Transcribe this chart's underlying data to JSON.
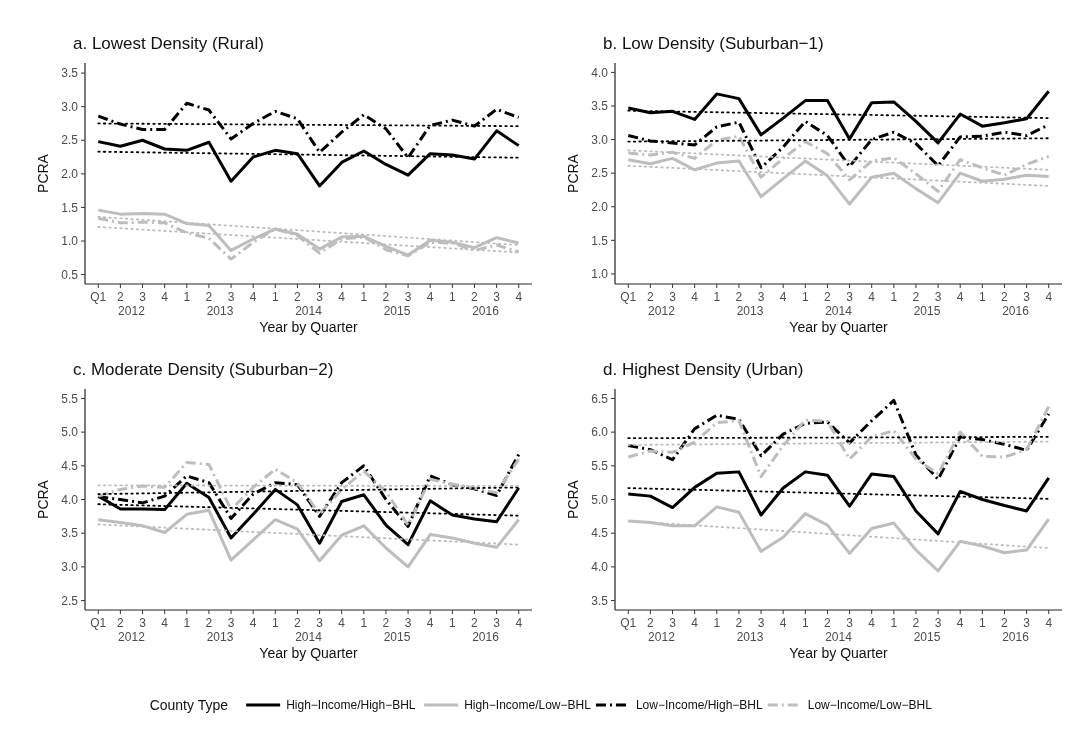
{
  "chart_data": [
    {
      "type": "line",
      "title": "a. Lowest Density (Rural)",
      "xlabel": "Year by Quarter",
      "ylabel": "PCRA",
      "categories": [
        "Q1",
        "2",
        "3",
        "4",
        "1",
        "2",
        "3",
        "4",
        "1",
        "2",
        "3",
        "4",
        "1",
        "2",
        "3",
        "4",
        "1",
        "2",
        "3",
        "4"
      ],
      "annotations": [
        "2012",
        "2013",
        "2014",
        "2015",
        "2016"
      ],
      "ylim": [
        0.36,
        3.65
      ],
      "yticks": [
        {
          "value": 0.5,
          "label": "0.5"
        },
        {
          "value": 1,
          "label": "1.0"
        },
        {
          "value": 1.5,
          "label": "1.5"
        },
        {
          "value": 2,
          "label": "2.0"
        },
        {
          "value": 2.5,
          "label": "2.5"
        },
        {
          "value": 3,
          "label": "3.0"
        },
        {
          "value": 3.5,
          "label": "3.5"
        }
      ],
      "grid": false,
      "series": [
        {
          "color": "#000000",
          "line_style": "solid",
          "values": [
            2.48,
            2.41,
            2.5,
            2.37,
            2.35,
            2.47,
            1.89,
            2.25,
            2.35,
            2.3,
            1.82,
            2.17,
            2.34,
            2.14,
            1.98,
            2.3,
            2.28,
            2.22,
            2.64,
            2.42
          ]
        },
        {
          "color": "#bdbdbd",
          "line_style": "solid",
          "values": [
            1.46,
            1.4,
            1.41,
            1.4,
            1.26,
            1.23,
            0.86,
            1.03,
            1.18,
            1.1,
            0.88,
            1.06,
            1.07,
            0.92,
            0.79,
            1.01,
            0.98,
            0.9,
            1.05,
            0.97
          ]
        },
        {
          "color": "#000000",
          "line_style": "dashdot",
          "values": [
            2.86,
            2.74,
            2.66,
            2.66,
            3.05,
            2.95,
            2.52,
            2.75,
            2.93,
            2.82,
            2.32,
            2.62,
            2.88,
            2.67,
            2.24,
            2.72,
            2.8,
            2.71,
            2.96,
            2.84
          ]
        },
        {
          "color": "#bdbdbd",
          "line_style": "dashdot",
          "values": [
            1.34,
            1.27,
            1.28,
            1.27,
            1.12,
            1.04,
            0.73,
            0.98,
            1.18,
            1.08,
            0.82,
            1.03,
            1.06,
            0.87,
            0.78,
            0.98,
            0.97,
            0.86,
            0.94,
            0.84
          ]
        },
        {
          "color": "#000000",
          "line_style": "dotted",
          "values": [
            2.33,
            null,
            null,
            null,
            null,
            null,
            null,
            null,
            null,
            null,
            null,
            null,
            null,
            null,
            null,
            null,
            null,
            null,
            null,
            2.24
          ]
        },
        {
          "color": "#bdbdbd",
          "line_style": "dotted",
          "values": [
            1.36,
            null,
            null,
            null,
            null,
            null,
            null,
            null,
            null,
            null,
            null,
            null,
            null,
            null,
            null,
            null,
            null,
            null,
            null,
            0.94
          ]
        },
        {
          "color": "#000000",
          "line_style": "dotted",
          "values": [
            2.75,
            null,
            null,
            null,
            null,
            null,
            null,
            null,
            null,
            null,
            null,
            null,
            null,
            null,
            null,
            null,
            null,
            null,
            null,
            2.71
          ]
        },
        {
          "color": "#bdbdbd",
          "line_style": "dotted",
          "values": [
            1.21,
            null,
            null,
            null,
            null,
            null,
            null,
            null,
            null,
            null,
            null,
            null,
            null,
            null,
            null,
            null,
            null,
            null,
            null,
            0.83
          ]
        }
      ]
    },
    {
      "type": "line",
      "title": "b. Low Density (Suburban−1)",
      "xlabel": "Year by Quarter",
      "ylabel": "PCRA",
      "categories": [
        "Q1",
        "2",
        "3",
        "4",
        "1",
        "2",
        "3",
        "4",
        "1",
        "2",
        "3",
        "4",
        "1",
        "2",
        "3",
        "4",
        "1",
        "2",
        "3",
        "4"
      ],
      "annotations": [
        "2012",
        "2013",
        "2014",
        "2015",
        "2016"
      ],
      "ylim": [
        0.85,
        4.14
      ],
      "yticks": [
        {
          "value": 1,
          "label": "1.0"
        },
        {
          "value": 1.5,
          "label": "1.5"
        },
        {
          "value": 2,
          "label": "2.0"
        },
        {
          "value": 2.5,
          "label": "2.5"
        },
        {
          "value": 3,
          "label": "3.0"
        },
        {
          "value": 3.5,
          "label": "3.5"
        },
        {
          "value": 4,
          "label": "4.0"
        }
      ],
      "grid": false,
      "series": [
        {
          "color": "#000000",
          "line_style": "solid",
          "values": [
            3.47,
            3.4,
            3.42,
            3.3,
            3.68,
            3.61,
            3.07,
            3.32,
            3.58,
            3.58,
            3.01,
            3.55,
            3.56,
            3.27,
            2.95,
            3.38,
            3.2,
            3.25,
            3.31,
            3.72
          ]
        },
        {
          "color": "#bdbdbd",
          "line_style": "solid",
          "values": [
            2.7,
            2.64,
            2.72,
            2.55,
            2.65,
            2.68,
            2.15,
            2.42,
            2.68,
            2.46,
            2.04,
            2.44,
            2.5,
            2.27,
            2.06,
            2.5,
            2.38,
            2.41,
            2.47,
            2.45
          ]
        },
        {
          "color": "#000000",
          "line_style": "dashdot",
          "values": [
            3.06,
            2.98,
            2.95,
            2.92,
            3.19,
            3.26,
            2.58,
            2.89,
            3.27,
            3.06,
            2.6,
            3.0,
            3.11,
            2.94,
            2.61,
            3.04,
            3.05,
            3.11,
            3.06,
            3.22
          ]
        },
        {
          "color": "#bdbdbd",
          "line_style": "dashdot",
          "values": [
            2.8,
            2.77,
            2.81,
            2.72,
            2.99,
            3.05,
            2.44,
            2.72,
            2.97,
            2.79,
            2.4,
            2.68,
            2.73,
            2.49,
            2.23,
            2.7,
            2.58,
            2.47,
            2.63,
            2.75
          ]
        },
        {
          "color": "#000000",
          "line_style": "dotted",
          "values": [
            3.43,
            null,
            null,
            null,
            null,
            null,
            null,
            null,
            null,
            null,
            null,
            null,
            null,
            null,
            null,
            null,
            null,
            null,
            null,
            3.32
          ]
        },
        {
          "color": "#bdbdbd",
          "line_style": "dotted",
          "values": [
            2.61,
            null,
            null,
            null,
            null,
            null,
            null,
            null,
            null,
            null,
            null,
            null,
            null,
            null,
            null,
            null,
            null,
            null,
            null,
            2.31
          ]
        },
        {
          "color": "#000000",
          "line_style": "dotted",
          "values": [
            2.97,
            null,
            null,
            null,
            null,
            null,
            null,
            null,
            null,
            null,
            null,
            null,
            null,
            null,
            null,
            null,
            null,
            null,
            null,
            3.02
          ]
        },
        {
          "color": "#bdbdbd",
          "line_style": "dotted",
          "values": [
            2.84,
            null,
            null,
            null,
            null,
            null,
            null,
            null,
            null,
            null,
            null,
            null,
            null,
            null,
            null,
            null,
            null,
            null,
            null,
            2.55
          ]
        }
      ]
    },
    {
      "type": "line",
      "title": "c. Moderate Density (Suburban−2)",
      "xlabel": "Year by Quarter",
      "ylabel": "PCRA",
      "categories": [
        "Q1",
        "2",
        "3",
        "4",
        "1",
        "2",
        "3",
        "4",
        "1",
        "2",
        "3",
        "4",
        "1",
        "2",
        "3",
        "4",
        "1",
        "2",
        "3",
        "4"
      ],
      "annotations": [
        "2012",
        "2013",
        "2014",
        "2015",
        "2016"
      ],
      "ylim": [
        2.36,
        5.64
      ],
      "yticks": [
        {
          "value": 2.5,
          "label": "2.5"
        },
        {
          "value": 3,
          "label": "3.0"
        },
        {
          "value": 3.5,
          "label": "3.5"
        },
        {
          "value": 4,
          "label": "4.0"
        },
        {
          "value": 4.5,
          "label": "4.5"
        },
        {
          "value": 5,
          "label": "5.0"
        },
        {
          "value": 5.5,
          "label": "5.5"
        }
      ],
      "grid": false,
      "series": [
        {
          "color": "#000000",
          "line_style": "solid",
          "values": [
            4.05,
            3.86,
            3.86,
            3.85,
            4.24,
            4.03,
            3.43,
            3.78,
            4.15,
            3.92,
            3.35,
            3.97,
            4.07,
            3.62,
            3.33,
            3.98,
            3.77,
            3.71,
            3.67,
            4.17
          ]
        },
        {
          "color": "#bdbdbd",
          "line_style": "solid",
          "values": [
            3.7,
            3.66,
            3.61,
            3.51,
            3.78,
            3.84,
            3.1,
            3.4,
            3.7,
            3.56,
            3.09,
            3.47,
            3.61,
            3.28,
            3.0,
            3.48,
            3.43,
            3.35,
            3.29,
            3.7
          ]
        },
        {
          "color": "#000000",
          "line_style": "dashdot",
          "values": [
            4.04,
            4.0,
            3.95,
            4.05,
            4.35,
            4.25,
            3.72,
            4.08,
            4.25,
            4.22,
            3.75,
            4.25,
            4.5,
            4.0,
            3.6,
            4.35,
            4.22,
            4.16,
            4.06,
            4.67
          ]
        },
        {
          "color": "#bdbdbd",
          "line_style": "dashdot",
          "values": [
            4.05,
            4.15,
            4.2,
            4.18,
            4.55,
            4.52,
            3.85,
            4.18,
            4.45,
            4.25,
            3.78,
            4.15,
            4.42,
            4.12,
            3.62,
            4.3,
            4.23,
            4.17,
            4.1,
            4.6
          ]
        },
        {
          "color": "#000000",
          "line_style": "dotted",
          "values": [
            3.93,
            null,
            null,
            null,
            null,
            null,
            null,
            null,
            null,
            null,
            null,
            null,
            null,
            null,
            null,
            null,
            null,
            null,
            null,
            3.76
          ]
        },
        {
          "color": "#bdbdbd",
          "line_style": "dotted",
          "values": [
            3.63,
            null,
            null,
            null,
            null,
            null,
            null,
            null,
            null,
            null,
            null,
            null,
            null,
            null,
            null,
            null,
            null,
            null,
            null,
            3.33
          ]
        },
        {
          "color": "#000000",
          "line_style": "dotted",
          "values": [
            4.08,
            null,
            null,
            null,
            null,
            null,
            null,
            null,
            null,
            null,
            null,
            null,
            null,
            null,
            null,
            null,
            null,
            null,
            null,
            4.18
          ]
        },
        {
          "color": "#bdbdbd",
          "line_style": "dotted",
          "values": [
            4.21,
            null,
            null,
            null,
            null,
            null,
            null,
            null,
            null,
            null,
            null,
            null,
            null,
            null,
            null,
            null,
            null,
            null,
            null,
            4.2
          ]
        }
      ]
    },
    {
      "type": "line",
      "title": "d. Highest Density (Urban)",
      "xlabel": "Year by Quarter",
      "ylabel": "PCRA",
      "categories": [
        "Q1",
        "2",
        "3",
        "4",
        "1",
        "2",
        "3",
        "4",
        "1",
        "2",
        "3",
        "4",
        "1",
        "2",
        "3",
        "4",
        "1",
        "2",
        "3",
        "4"
      ],
      "annotations": [
        "2012",
        "2013",
        "2014",
        "2015",
        "2016"
      ],
      "ylim": [
        3.36,
        6.64
      ],
      "yticks": [
        {
          "value": 3.5,
          "label": "3.5"
        },
        {
          "value": 4,
          "label": "4.0"
        },
        {
          "value": 4.5,
          "label": "4.5"
        },
        {
          "value": 5,
          "label": "5.0"
        },
        {
          "value": 5.5,
          "label": "5.5"
        },
        {
          "value": 6,
          "label": "6.0"
        },
        {
          "value": 6.5,
          "label": "6.5"
        }
      ],
      "grid": false,
      "legend": "bottom",
      "legend_title": "County Type",
      "series": [
        {
          "name": "High−Income/High−BHL",
          "color": "#000000",
          "line_style": "solid",
          "values": [
            5.08,
            5.05,
            4.88,
            5.18,
            5.39,
            5.41,
            4.77,
            5.17,
            5.41,
            5.36,
            4.9,
            5.38,
            5.34,
            4.83,
            4.49,
            5.12,
            5.0,
            4.91,
            4.83,
            5.32
          ]
        },
        {
          "name": "High−Income/Low−BHL",
          "color": "#bdbdbd",
          "line_style": "solid",
          "values": [
            4.68,
            4.66,
            4.61,
            4.61,
            4.89,
            4.81,
            4.23,
            4.44,
            4.79,
            4.62,
            4.2,
            4.57,
            4.65,
            4.25,
            3.94,
            4.38,
            4.31,
            4.21,
            4.25,
            4.71
          ]
        },
        {
          "name": "Low−Income/High−BHL",
          "color": "#000000",
          "line_style": "dashdot",
          "values": [
            5.8,
            5.74,
            5.59,
            6.05,
            6.25,
            6.19,
            5.65,
            5.97,
            6.13,
            6.15,
            5.84,
            6.17,
            6.47,
            5.66,
            5.3,
            5.93,
            5.89,
            5.82,
            5.73,
            6.27
          ]
        },
        {
          "name": "Low−Income/Low−BHL",
          "color": "#bdbdbd",
          "line_style": "dashdot",
          "values": [
            5.63,
            5.72,
            5.7,
            5.85,
            6.14,
            6.17,
            5.34,
            5.8,
            6.18,
            6.16,
            5.6,
            5.93,
            6.02,
            5.6,
            5.38,
            6.0,
            5.64,
            5.63,
            5.74,
            6.38
          ]
        },
        {
          "color": "#000000",
          "line_style": "dotted",
          "values": [
            5.17,
            null,
            null,
            null,
            null,
            null,
            null,
            null,
            null,
            null,
            null,
            null,
            null,
            null,
            null,
            null,
            null,
            null,
            null,
            5.01
          ]
        },
        {
          "color": "#bdbdbd",
          "line_style": "dotted",
          "values": [
            4.68,
            null,
            null,
            null,
            null,
            null,
            null,
            null,
            null,
            null,
            null,
            null,
            null,
            null,
            null,
            null,
            null,
            null,
            null,
            4.28
          ]
        },
        {
          "color": "#000000",
          "line_style": "dotted",
          "values": [
            5.91,
            null,
            null,
            null,
            null,
            null,
            null,
            null,
            null,
            null,
            null,
            null,
            null,
            null,
            null,
            null,
            null,
            null,
            null,
            5.93
          ]
        },
        {
          "color": "#bdbdbd",
          "line_style": "dotted",
          "values": [
            5.81,
            null,
            null,
            null,
            null,
            null,
            null,
            null,
            null,
            null,
            null,
            null,
            null,
            null,
            null,
            null,
            null,
            null,
            null,
            5.86
          ]
        }
      ]
    }
  ]
}
